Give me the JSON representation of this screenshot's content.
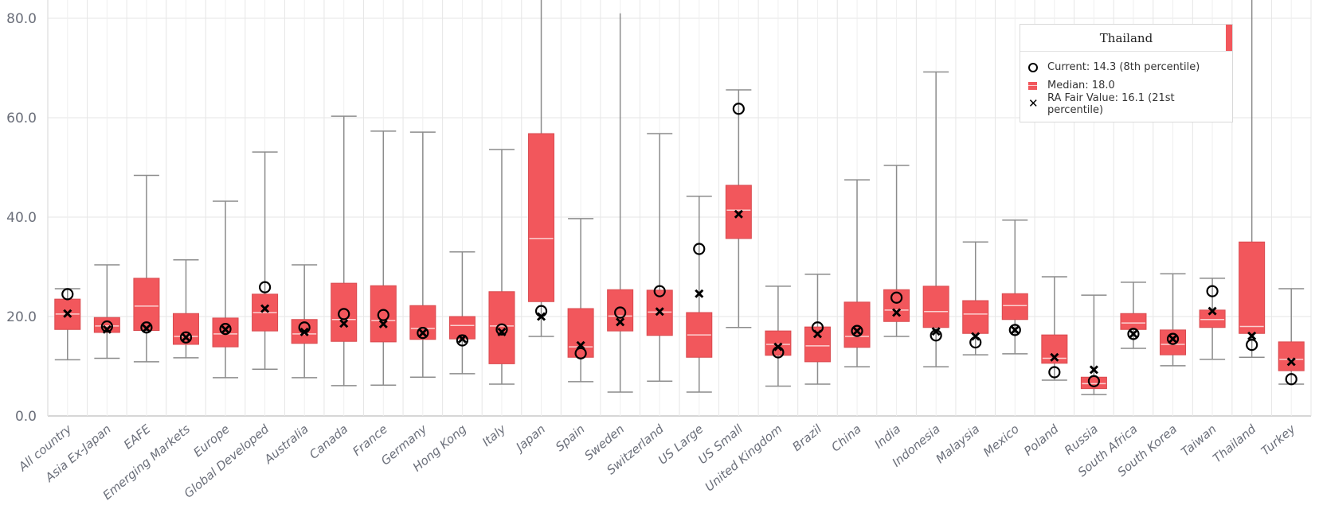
{
  "chart_data": {
    "type": "boxplot",
    "title": "",
    "xlabel": "",
    "ylabel": "",
    "ylim": [
      0,
      80
    ],
    "yticks": [
      "0.0",
      "20.0",
      "40.0",
      "60.0",
      "80.0"
    ],
    "grid": true,
    "colors": {
      "box": "#f2575c",
      "box_border": "#d94a4f",
      "median": "#fbd0d0",
      "whisker": "#8c8c8c",
      "marker": "#000000",
      "grid": "#e6e6e6"
    },
    "series": [
      {
        "name": "Current",
        "marker": "circle"
      },
      {
        "name": "Median",
        "marker": "box"
      },
      {
        "name": "RA Fair Value",
        "marker": "x"
      }
    ],
    "categories": [
      "All country",
      "Asia Ex-Japan",
      "EAFE",
      "Emerging Markets",
      "Europe",
      "Global Developed",
      "Australia",
      "Canada",
      "France",
      "Germany",
      "Hong Kong",
      "Italy",
      "Japan",
      "Spain",
      "Sweden",
      "Switzerland",
      "US Large",
      "US Small",
      "United Kingdom",
      "Brazil",
      "China",
      "India",
      "Indonesia",
      "Malaysia",
      "Mexico",
      "Poland",
      "Russia",
      "South Africa",
      "South Korea",
      "Taiwan",
      "Thailand",
      "Turkey"
    ],
    "boxes": [
      {
        "min": 11.3,
        "q1": 17.4,
        "median": 20.5,
        "q3": 23.5,
        "max": 25.6,
        "current": 24.5,
        "fair_value": 20.6
      },
      {
        "min": 11.6,
        "q1": 16.8,
        "median": 18.1,
        "q3": 19.8,
        "max": 30.4,
        "current": 18.0,
        "fair_value": 17.4
      },
      {
        "min": 10.9,
        "q1": 17.2,
        "median": 22.1,
        "q3": 27.7,
        "max": 48.4,
        "current": 17.8,
        "fair_value": 17.6
      },
      {
        "min": 11.7,
        "q1": 14.4,
        "median": 16.0,
        "q3": 20.6,
        "max": 31.4,
        "current": 15.8,
        "fair_value": 15.8
      },
      {
        "min": 7.7,
        "q1": 13.9,
        "median": 16.5,
        "q3": 19.7,
        "max": 43.2,
        "current": 17.5,
        "fair_value": 17.4
      },
      {
        "min": 9.4,
        "q1": 17.1,
        "median": 20.8,
        "q3": 24.5,
        "max": 53.1,
        "current": 25.9,
        "fair_value": 21.6
      },
      {
        "min": 7.7,
        "q1": 14.6,
        "median": 16.5,
        "q3": 19.4,
        "max": 30.4,
        "current": 17.8,
        "fair_value": 16.9
      },
      {
        "min": 6.1,
        "q1": 15.0,
        "median": 19.4,
        "q3": 26.7,
        "max": 60.3,
        "current": 20.5,
        "fair_value": 18.6
      },
      {
        "min": 6.2,
        "q1": 14.9,
        "median": 19.2,
        "q3": 26.2,
        "max": 57.3,
        "current": 20.3,
        "fair_value": 18.5
      },
      {
        "min": 7.8,
        "q1": 15.4,
        "median": 17.6,
        "q3": 22.2,
        "max": 57.1,
        "current": 16.7,
        "fair_value": 16.7
      },
      {
        "min": 8.5,
        "q1": 15.5,
        "median": 18.2,
        "q3": 20.0,
        "max": 33.0,
        "current": 15.2,
        "fair_value": 15.5
      },
      {
        "min": 6.4,
        "q1": 10.5,
        "median": 18.1,
        "q3": 25.0,
        "max": 53.6,
        "current": 17.4,
        "fair_value": 16.9
      },
      {
        "min": 16.0,
        "q1": 23.0,
        "median": 35.7,
        "q3": 56.8,
        "max": 90.0,
        "current": 21.1,
        "fair_value": 20.0
      },
      {
        "min": 6.9,
        "q1": 11.8,
        "median": 13.9,
        "q3": 21.6,
        "max": 39.7,
        "current": 12.6,
        "fair_value": 14.2
      },
      {
        "min": 4.8,
        "q1": 17.1,
        "median": 20.1,
        "q3": 25.4,
        "max": 81.0,
        "current": 20.8,
        "fair_value": 18.9
      },
      {
        "min": 7.0,
        "q1": 16.2,
        "median": 20.9,
        "q3": 25.3,
        "max": 56.8,
        "current": 25.1,
        "fair_value": 21.0
      },
      {
        "min": 4.8,
        "q1": 11.8,
        "median": 16.3,
        "q3": 20.8,
        "max": 44.2,
        "current": 33.6,
        "fair_value": 24.6
      },
      {
        "min": 17.8,
        "q1": 35.7,
        "median": 41.4,
        "q3": 46.4,
        "max": 65.6,
        "current": 61.8,
        "fair_value": 40.6
      },
      {
        "min": 6.0,
        "q1": 12.2,
        "median": 14.4,
        "q3": 17.1,
        "max": 26.1,
        "current": 12.8,
        "fair_value": 13.9
      },
      {
        "min": 6.4,
        "q1": 10.9,
        "median": 14.1,
        "q3": 17.9,
        "max": 28.5,
        "current": 17.8,
        "fair_value": 16.5
      },
      {
        "min": 9.9,
        "q1": 13.8,
        "median": 16.0,
        "q3": 22.9,
        "max": 47.5,
        "current": 17.1,
        "fair_value": 17.1
      },
      {
        "min": 16.0,
        "q1": 19.0,
        "median": 21.3,
        "q3": 25.4,
        "max": 50.4,
        "current": 23.8,
        "fair_value": 20.8
      },
      {
        "min": 9.9,
        "q1": 17.8,
        "median": 21.0,
        "q3": 26.1,
        "max": 69.2,
        "current": 16.2,
        "fair_value": 17.0
      },
      {
        "min": 12.3,
        "q1": 16.6,
        "median": 20.5,
        "q3": 23.2,
        "max": 35.0,
        "current": 14.8,
        "fair_value": 16.0
      },
      {
        "min": 12.5,
        "q1": 19.4,
        "median": 22.2,
        "q3": 24.6,
        "max": 39.4,
        "current": 17.3,
        "fair_value": 17.3
      },
      {
        "min": 7.2,
        "q1": 10.6,
        "median": 11.6,
        "q3": 16.3,
        "max": 28.0,
        "current": 8.8,
        "fair_value": 11.8
      },
      {
        "min": 4.3,
        "q1": 5.5,
        "median": 6.5,
        "q3": 7.8,
        "max": 24.3,
        "current": 7.0,
        "fair_value": 9.3
      },
      {
        "min": 13.6,
        "q1": 17.4,
        "median": 18.7,
        "q3": 20.6,
        "max": 26.9,
        "current": 16.5,
        "fair_value": 16.5
      },
      {
        "min": 10.1,
        "q1": 12.3,
        "median": 14.4,
        "q3": 17.3,
        "max": 28.6,
        "current": 15.5,
        "fair_value": 15.5
      },
      {
        "min": 11.4,
        "q1": 17.8,
        "median": 19.4,
        "q3": 21.3,
        "max": 27.7,
        "current": 25.1,
        "fair_value": 21.1
      },
      {
        "min": 11.8,
        "q1": 16.6,
        "median": 18.0,
        "q3": 35.0,
        "max": 90.0,
        "current": 14.3,
        "fair_value": 16.1
      },
      {
        "min": 6.4,
        "q1": 9.1,
        "median": 11.4,
        "q3": 14.9,
        "max": 25.6,
        "current": 7.4,
        "fair_value": 10.9
      }
    ]
  },
  "tooltip": {
    "title": "Thailand",
    "accent_color": "#f2575c",
    "rows": [
      {
        "icon": "circle-icon",
        "label": "Current: 14.3 (8th percentile)"
      },
      {
        "icon": "median-box-icon",
        "label": "Median: 18.0"
      },
      {
        "icon": "x-mark-icon",
        "label": "RA Fair Value: 16.1 (21st percentile)"
      }
    ]
  }
}
